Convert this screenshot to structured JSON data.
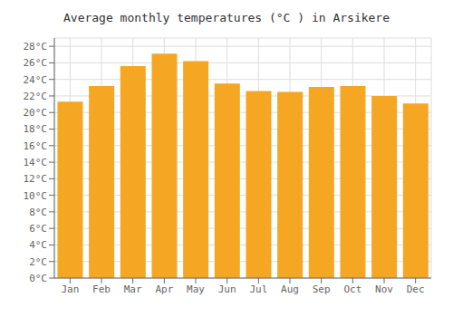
{
  "chart_data": {
    "type": "bar",
    "title": "Average monthly temperatures (°C ) in Arsikere",
    "categories": [
      "Jan",
      "Feb",
      "Mar",
      "Apr",
      "May",
      "Jun",
      "Jul",
      "Aug",
      "Sep",
      "Oct",
      "Nov",
      "Dec"
    ],
    "values": [
      21.3,
      23.2,
      25.6,
      27.1,
      26.2,
      23.5,
      22.6,
      22.5,
      23.1,
      23.2,
      22.0,
      21.1
    ],
    "color": "#F5A623",
    "ylim": [
      0,
      29
    ],
    "yticks": [
      {
        "value": 0,
        "label": "0°C"
      },
      {
        "value": 2,
        "label": "2°C"
      },
      {
        "value": 4,
        "label": "4°C"
      },
      {
        "value": 6,
        "label": "6°C"
      },
      {
        "value": 8,
        "label": "8°C"
      },
      {
        "value": 10,
        "label": "10°C"
      },
      {
        "value": 12,
        "label": "12°C"
      },
      {
        "value": 14,
        "label": "14°C"
      },
      {
        "value": 16,
        "label": "16°C"
      },
      {
        "value": 18,
        "label": "18°C"
      },
      {
        "value": 20,
        "label": "20°C"
      },
      {
        "value": 22,
        "label": "22°C"
      },
      {
        "value": 24,
        "label": "24°C"
      },
      {
        "value": 26,
        "label": "26°C"
      },
      {
        "value": 28,
        "label": "28°C"
      }
    ],
    "grid": true
  }
}
